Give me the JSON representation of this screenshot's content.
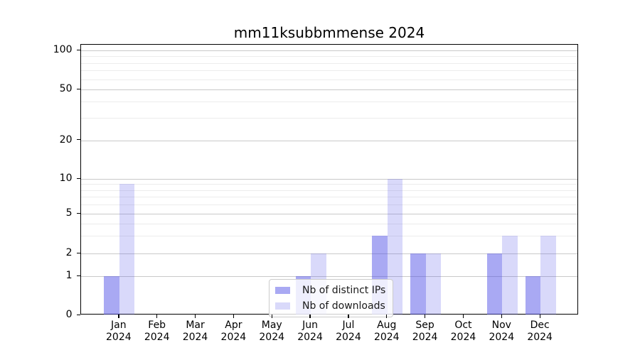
{
  "title": "mm11ksubbmmense 2024",
  "chart_data": {
    "type": "bar",
    "title": "mm11ksubbmmense 2024",
    "categories": [
      "Jan 2024",
      "Feb 2024",
      "Mar 2024",
      "Apr 2024",
      "May 2024",
      "Jun 2024",
      "Jul 2024",
      "Aug 2024",
      "Sep 2024",
      "Oct 2024",
      "Nov 2024",
      "Dec 2024"
    ],
    "series": [
      {
        "name": "Nb of distinct IPs",
        "color": "rgba(80,80,230,0.49)",
        "values": [
          1,
          0,
          0,
          0,
          0,
          1,
          0,
          3,
          2,
          0,
          2,
          1
        ]
      },
      {
        "name": "Nb of downloads",
        "color": "rgba(80,80,230,0.22)",
        "values": [
          9,
          0,
          0,
          0,
          0,
          2,
          0,
          10,
          2,
          0,
          3,
          3
        ]
      }
    ],
    "yscale": "log (linear segment between 0 and 1)",
    "ylim": [
      0,
      100
    ],
    "yticks": [
      0,
      1,
      2,
      5,
      10,
      20,
      50,
      100
    ],
    "minor_grid_values": [
      3,
      4,
      6,
      7,
      8,
      9,
      30,
      40,
      60,
      70,
      80,
      90
    ],
    "grid": "horizontal",
    "legend_position": "lower center inside plot"
  },
  "legend": {
    "items": [
      {
        "label": "Nb of distinct IPs",
        "color": "rgba(80,80,230,0.49)"
      },
      {
        "label": "Nb of downloads",
        "color": "rgba(80,80,230,0.22)"
      }
    ]
  },
  "colors": {
    "background": "#ffffff",
    "spine": "#000000",
    "major_grid": "#c9c9c9",
    "minor_grid": "#ececec",
    "legend_border": "#cccccc",
    "bar_base": "#5050e6"
  }
}
